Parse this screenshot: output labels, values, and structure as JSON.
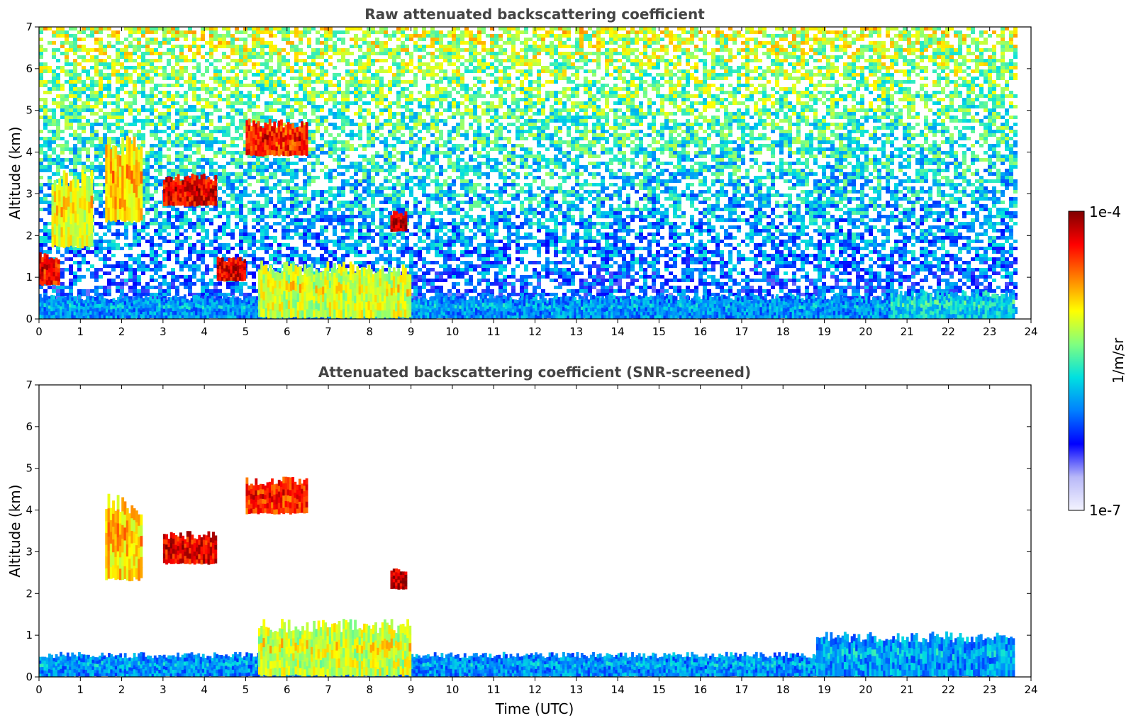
{
  "chart_data": [
    {
      "type": "heatmap",
      "title": "Raw attenuated backscattering coefficient",
      "xlabel": "",
      "ylabel": "Altitude (km)",
      "xlim": [
        0,
        24
      ],
      "ylim": [
        0,
        7
      ],
      "x_ticks": [
        "0",
        "1",
        "2",
        "3",
        "4",
        "5",
        "6",
        "7",
        "8",
        "9",
        "10",
        "11",
        "12",
        "13",
        "14",
        "15",
        "16",
        "17",
        "18",
        "19",
        "20",
        "21",
        "22",
        "23",
        "24"
      ],
      "y_ticks": [
        "0",
        "1",
        "2",
        "3",
        "4",
        "5",
        "6",
        "7"
      ],
      "data_end_time": 23.6,
      "features": [
        {
          "desc": "boundary layer",
          "t0": 0,
          "t1": 23.6,
          "z0": 0,
          "z1": 0.6,
          "level": 0.35
        },
        {
          "desc": "aerosol layer",
          "t0": 20.6,
          "t1": 23.6,
          "z0": 0,
          "z1": 0.7,
          "level": 0.42
        },
        {
          "desc": "cloud",
          "t0": 3.0,
          "t1": 4.3,
          "z0": 2.7,
          "z1": 3.5,
          "level": 0.9
        },
        {
          "desc": "cloud",
          "t0": 1.6,
          "t1": 2.5,
          "z0": 2.3,
          "z1": 4.4,
          "level": 0.7
        },
        {
          "desc": "cloud",
          "t0": 0.3,
          "t1": 1.3,
          "z0": 1.7,
          "z1": 3.6,
          "level": 0.65
        },
        {
          "desc": "cloud",
          "t0": 5.0,
          "t1": 6.5,
          "z0": 3.9,
          "z1": 4.8,
          "level": 0.85
        },
        {
          "desc": "cloud",
          "t0": 5.3,
          "t1": 9.0,
          "z0": 0,
          "z1": 1.4,
          "level": 0.62
        },
        {
          "desc": "cloud",
          "t0": 0,
          "t1": 0.5,
          "z0": 0.8,
          "z1": 1.6,
          "level": 0.88
        },
        {
          "desc": "cloud",
          "t0": 4.3,
          "t1": 5.0,
          "z0": 0.9,
          "z1": 1.5,
          "level": 0.9
        },
        {
          "desc": "cloud",
          "t0": 8.5,
          "t1": 8.9,
          "z0": 2.1,
          "z1": 2.6,
          "level": 0.95
        }
      ]
    },
    {
      "type": "heatmap",
      "title": "Attenuated backscattering coefficient (SNR-screened)",
      "xlabel": "Time (UTC)",
      "ylabel": "Altitude (km)",
      "xlim": [
        0,
        24
      ],
      "ylim": [
        0,
        7
      ],
      "x_ticks": [
        "0",
        "1",
        "2",
        "3",
        "4",
        "5",
        "6",
        "7",
        "8",
        "9",
        "10",
        "11",
        "12",
        "13",
        "14",
        "15",
        "16",
        "17",
        "18",
        "19",
        "20",
        "21",
        "22",
        "23",
        "24"
      ],
      "y_ticks": [
        "0",
        "1",
        "2",
        "3",
        "4",
        "5",
        "6",
        "7"
      ],
      "data_end_time": 23.6,
      "features": [
        {
          "desc": "boundary layer",
          "t0": 0,
          "t1": 23.6,
          "z0": 0,
          "z1": 0.6,
          "level": 0.35
        },
        {
          "desc": "aerosol layer",
          "t0": 18.8,
          "t1": 23.6,
          "z0": 0,
          "z1": 1.1,
          "level": 0.36
        },
        {
          "desc": "cloud",
          "t0": 3.0,
          "t1": 4.3,
          "z0": 2.7,
          "z1": 3.5,
          "level": 0.9
        },
        {
          "desc": "cloud",
          "t0": 1.6,
          "t1": 2.5,
          "z0": 2.3,
          "z1": 4.4,
          "level": 0.7
        },
        {
          "desc": "cloud",
          "t0": 5.0,
          "t1": 6.5,
          "z0": 3.9,
          "z1": 4.8,
          "level": 0.85
        },
        {
          "desc": "cloud",
          "t0": 5.3,
          "t1": 9.0,
          "z0": 0,
          "z1": 1.4,
          "level": 0.62
        },
        {
          "desc": "cloud",
          "t0": 8.5,
          "t1": 8.9,
          "z0": 2.1,
          "z1": 2.6,
          "level": 0.95
        }
      ]
    }
  ],
  "colorbar": {
    "label": "1/m/sr",
    "max_label": "1e-4",
    "min_label": "1e-7",
    "colors": [
      "#f4f4ff",
      "#b8b8f8",
      "#0000ff",
      "#0080ff",
      "#00e0e0",
      "#80ff80",
      "#ffff00",
      "#ff8000",
      "#ff0000",
      "#800000"
    ]
  }
}
